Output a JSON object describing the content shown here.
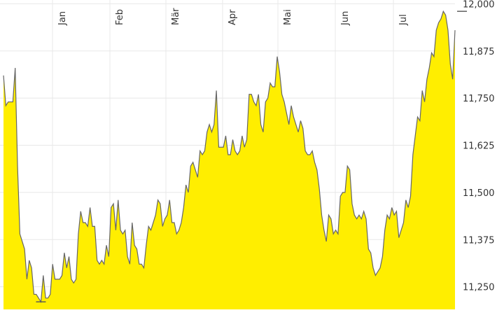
{
  "chart_data": {
    "type": "area",
    "x_tick_labels": [
      "Jan",
      "Feb",
      "Mär",
      "Apr",
      "Mai",
      "Jun",
      "Jul"
    ],
    "y_ticks": [
      11250,
      11375,
      11500,
      11625,
      11750,
      11875,
      12000
    ],
    "y_tick_labels": [
      "11,250",
      "11,375",
      "11,500",
      "11,625",
      "11,750",
      "11,875",
      "12,000"
    ],
    "ylim": [
      11190,
      12010
    ],
    "grid": true,
    "colors": {
      "fill": "#ffee00",
      "line": "#666666",
      "grid": "#e8e8e8",
      "text": "#333333"
    },
    "series": [
      {
        "values": [
          11810,
          11730,
          11740,
          11740,
          11740,
          11830,
          11570,
          11390,
          11370,
          11350,
          11270,
          11320,
          11300,
          11230,
          11230,
          11220,
          11210,
          11280,
          11220,
          11220,
          11230,
          11310,
          11270,
          11270,
          11270,
          11280,
          11340,
          11300,
          11330,
          11270,
          11260,
          11270,
          11390,
          11450,
          11420,
          11420,
          11410,
          11460,
          11410,
          11410,
          11320,
          11310,
          11320,
          11310,
          11360,
          11330,
          11460,
          11470,
          11400,
          11480,
          11400,
          11390,
          11400,
          11330,
          11310,
          11420,
          11360,
          11350,
          11310,
          11310,
          11300,
          11360,
          11410,
          11400,
          11420,
          11440,
          11480,
          11470,
          11410,
          11430,
          11440,
          11480,
          11420,
          11420,
          11390,
          11400,
          11420,
          11460,
          11520,
          11500,
          11570,
          11580,
          11560,
          11540,
          11610,
          11600,
          11610,
          11660,
          11680,
          11660,
          11680,
          11770,
          11620,
          11620,
          11620,
          11650,
          11600,
          11600,
          11640,
          11610,
          11600,
          11610,
          11650,
          11620,
          11640,
          11760,
          11760,
          11740,
          11730,
          11760,
          11680,
          11660,
          11740,
          11750,
          11790,
          11780,
          11780,
          11860,
          11820,
          11760,
          11740,
          11710,
          11680,
          11730,
          11700,
          11680,
          11660,
          11690,
          11670,
          11610,
          11600,
          11600,
          11610,
          11580,
          11560,
          11510,
          11440,
          11400,
          11370,
          11440,
          11430,
          11390,
          11400,
          11390,
          11490,
          11500,
          11500,
          11570,
          11560,
          11470,
          11440,
          11430,
          11440,
          11430,
          11450,
          11430,
          11350,
          11340,
          11300,
          11280,
          11290,
          11300,
          11330,
          11400,
          11440,
          11430,
          11460,
          11440,
          11450,
          11380,
          11400,
          11420,
          11480,
          11460,
          11490,
          11600,
          11650,
          11700,
          11690,
          11770,
          11740,
          11800,
          11830,
          11870,
          11860,
          11930,
          11950,
          11960,
          11980,
          11970,
          11930,
          11840,
          11800,
          11930
        ],
        "markers": [
          {
            "index": 16,
            "value": 11210
          },
          {
            "index": 196,
            "value": 11980
          }
        ]
      }
    ]
  }
}
